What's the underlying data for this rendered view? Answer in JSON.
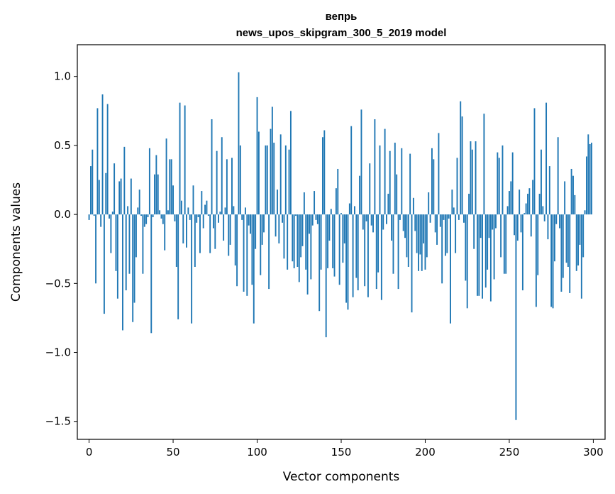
{
  "chart_data": {
    "type": "bar",
    "title": "вепрь",
    "subtitle": "news_upos_skipgram_300_5_2019 model",
    "xlabel": "Vector components",
    "ylabel": "Components values",
    "xlim": [
      -7,
      307
    ],
    "ylim": [
      -1.63,
      1.23
    ],
    "xticks": [
      0,
      50,
      100,
      150,
      200,
      250,
      300
    ],
    "yticks": [
      -1.5,
      -1.0,
      -0.5,
      0.0,
      0.5,
      1.0
    ],
    "ytick_labels": [
      "−1.5",
      "−1.0",
      "−0.5",
      "0.0",
      "0.5",
      "1.0"
    ],
    "bar_color": "#1f77b4",
    "series": [
      {
        "name": "вепрь",
        "x_start": 0,
        "values": [
          -0.04,
          0.35,
          0.47,
          -0.01,
          -0.5,
          0.77,
          0.25,
          -0.09,
          0.87,
          -0.72,
          0.3,
          0.8,
          -0.03,
          -0.28,
          0.02,
          0.37,
          -0.41,
          -0.61,
          0.24,
          0.26,
          -0.84,
          0.49,
          -0.55,
          0.06,
          -0.43,
          0.26,
          -0.78,
          -0.64,
          -0.31,
          0.05,
          0.18,
          -0.01,
          -0.43,
          -0.09,
          -0.07,
          -0.02,
          0.48,
          -0.86,
          -0.02,
          0.29,
          0.43,
          0.29,
          0.03,
          -0.03,
          -0.07,
          -0.26,
          0.55,
          0.03,
          0.4,
          0.4,
          0.21,
          -0.05,
          -0.38,
          -0.76,
          0.81,
          0.1,
          -0.21,
          0.79,
          -0.24,
          0.05,
          -0.04,
          -0.79,
          0.21,
          -0.38,
          -0.06,
          -0.02,
          -0.28,
          0.17,
          -0.1,
          0.07,
          0.1,
          -0.01,
          -0.28,
          0.69,
          -0.1,
          -0.25,
          0.46,
          -0.06,
          0.02,
          0.56,
          -0.19,
          0.05,
          0.4,
          -0.3,
          -0.22,
          0.41,
          0.06,
          -0.37,
          -0.52,
          1.03,
          0.5,
          -0.04,
          -0.56,
          0.05,
          -0.59,
          -0.08,
          -0.14,
          -0.51,
          -0.79,
          -0.25,
          0.85,
          0.6,
          -0.44,
          -0.22,
          -0.13,
          0.5,
          0.5,
          -0.54,
          0.62,
          0.78,
          0.52,
          -0.16,
          0.18,
          -0.21,
          0.58,
          -0.06,
          -0.32,
          0.5,
          -0.4,
          0.47,
          0.75,
          -0.34,
          -0.39,
          -0.01,
          -0.38,
          -0.49,
          -0.31,
          -0.23,
          0.16,
          -0.4,
          -0.58,
          -0.14,
          -0.47,
          -0.08,
          0.17,
          -0.04,
          -0.07,
          -0.7,
          -0.4,
          0.56,
          0.61,
          -0.89,
          -0.39,
          -0.19,
          0.04,
          -0.39,
          -0.45,
          0.19,
          0.33,
          -0.51,
          0.01,
          -0.35,
          -0.21,
          -0.64,
          -0.69,
          0.08,
          0.64,
          -0.6,
          0.06,
          -0.46,
          -0.55,
          0.28,
          0.76,
          -0.11,
          -0.52,
          -0.05,
          -0.6,
          0.37,
          -0.08,
          -0.13,
          0.69,
          -0.54,
          -0.42,
          0.5,
          -0.62,
          -0.11,
          0.62,
          -0.07,
          0.15,
          0.46,
          -0.19,
          -0.43,
          0.52,
          0.29,
          -0.54,
          -0.04,
          0.48,
          -0.12,
          -0.17,
          -0.31,
          -0.38,
          0.44,
          -0.71,
          0.12,
          -0.12,
          -0.28,
          -0.41,
          -0.29,
          -0.41,
          -0.21,
          -0.4,
          -0.31,
          0.16,
          -0.06,
          0.48,
          0.4,
          -0.13,
          -0.22,
          0.59,
          -0.09,
          -0.5,
          -0.04,
          -0.3,
          -0.28,
          -0.03,
          -0.79,
          0.18,
          0.05,
          -0.28,
          0.41,
          -0.04,
          0.82,
          0.71,
          -0.06,
          -0.48,
          -0.68,
          0.15,
          0.53,
          0.47,
          -0.25,
          0.53,
          -0.59,
          -0.59,
          -0.17,
          -0.61,
          0.73,
          -0.53,
          -0.4,
          -0.17,
          -0.63,
          -0.11,
          -0.47,
          -0.1,
          0.45,
          0.41,
          -0.31,
          0.5,
          -0.43,
          -0.43,
          0.06,
          0.17,
          0.24,
          0.45,
          -0.15,
          -1.49,
          -0.19,
          0.18,
          -0.13,
          -0.55,
          0.01,
          0.08,
          0.15,
          0.19,
          -0.16,
          0.25,
          0.77,
          -0.67,
          -0.44,
          0.15,
          0.47,
          0.06,
          -0.05,
          0.81,
          -0.18,
          0.35,
          -0.67,
          -0.68,
          -0.34,
          -0.07,
          0.56,
          -0.1,
          -0.56,
          -0.46,
          0.24,
          -0.35,
          -0.38,
          -0.57,
          0.33,
          0.28,
          0.14,
          -0.41,
          -0.37,
          -0.22,
          -0.61,
          -0.31,
          0.03,
          0.42,
          0.58,
          0.51,
          0.52
        ]
      }
    ]
  }
}
